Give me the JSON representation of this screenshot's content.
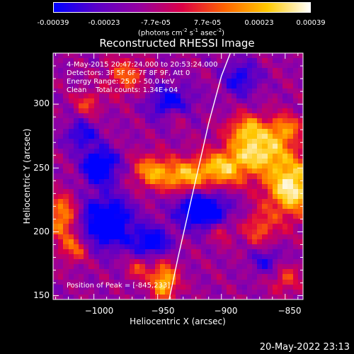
{
  "colorbar": {
    "ticks": [
      "-0.00039",
      "-0.00023",
      "-7.7e-05",
      "7.7e-05",
      "0.00023",
      "0.00039"
    ],
    "units_text": "(photons cm",
    "units_exp1": "-2",
    "units_mid": " s",
    "units_exp2": "-1",
    "units_mid2": " asec",
    "units_exp3": "-2",
    "units_end": ")"
  },
  "title": "Reconstructed RHESSI Image",
  "overlay": {
    "time_range": "4-May-2015 20:47:24.000 to 20:53:24.000",
    "detectors": "Detectors: 3F 5F 6F 7F 8F 9F, Att 0",
    "energy_range": "Energy Range: 25.0 - 50.0 keV",
    "clean_counts": "Clean    Total counts: 1.34E+04",
    "peak": "Position of Peak = [-845,233]"
  },
  "timestamp": "20-May-2022 23:13",
  "chart_data": {
    "type": "heatmap",
    "title": "Reconstructed RHESSI Image",
    "xlabel": "Heliocentric X (arcsec)",
    "ylabel": "Heliocentric Y (arcsec)",
    "xlim": [
      -1032,
      -836
    ],
    "ylim": [
      147,
      340
    ],
    "x_ticks": [
      -1000,
      -950,
      -900,
      -850
    ],
    "x_tick_labels": [
      "−1000",
      "−950",
      "−900",
      "−850"
    ],
    "y_ticks": [
      150,
      200,
      250,
      300
    ],
    "y_tick_labels": [
      "150",
      "200",
      "250",
      "300"
    ],
    "value_range": [
      -0.00039,
      0.00039
    ],
    "colormap": [
      "#0000ff",
      "#5a00c8",
      "#9600a0",
      "#dc0046",
      "#ff6400",
      "#ffc800",
      "#ffffff"
    ],
    "limb_line": {
      "x": [
        -941,
        -934,
        -926,
        -918,
        -910,
        -900,
        -893
      ],
      "y": [
        147,
        180,
        215,
        250,
        285,
        322,
        340
      ]
    },
    "bright_regions": [
      {
        "x": -845,
        "y": 233,
        "amp": 1.0,
        "sx": 14,
        "sy": 16
      },
      {
        "x": -870,
        "y": 262,
        "amp": 0.85,
        "sx": 16,
        "sy": 12
      },
      {
        "x": -900,
        "y": 248,
        "amp": 0.75,
        "sx": 14,
        "sy": 10
      },
      {
        "x": -930,
        "y": 242,
        "amp": 0.7,
        "sx": 12,
        "sy": 9
      },
      {
        "x": -955,
        "y": 246,
        "amp": 0.65,
        "sx": 10,
        "sy": 9
      },
      {
        "x": -880,
        "y": 280,
        "amp": 0.6,
        "sx": 10,
        "sy": 8
      },
      {
        "x": -850,
        "y": 280,
        "amp": 0.55,
        "sx": 9,
        "sy": 8
      },
      {
        "x": -1025,
        "y": 210,
        "amp": 0.7,
        "sx": 8,
        "sy": 12
      },
      {
        "x": -1015,
        "y": 185,
        "amp": 0.5,
        "sx": 8,
        "sy": 8
      },
      {
        "x": -945,
        "y": 158,
        "amp": 0.85,
        "sx": 7,
        "sy": 10
      },
      {
        "x": -965,
        "y": 168,
        "amp": 0.4,
        "sx": 6,
        "sy": 6
      },
      {
        "x": -870,
        "y": 200,
        "amp": 0.45,
        "sx": 9,
        "sy": 10
      },
      {
        "x": -850,
        "y": 160,
        "amp": 0.4,
        "sx": 8,
        "sy": 8
      },
      {
        "x": -975,
        "y": 322,
        "amp": 0.5,
        "sx": 10,
        "sy": 10
      },
      {
        "x": -1005,
        "y": 300,
        "amp": 0.4,
        "sx": 7,
        "sy": 7
      },
      {
        "x": -935,
        "y": 290,
        "amp": 0.35,
        "sx": 6,
        "sy": 6
      },
      {
        "x": -900,
        "y": 198,
        "amp": 0.35,
        "sx": 6,
        "sy": 6
      }
    ],
    "dark_regions": [
      {
        "x": -995,
        "y": 250,
        "amp": 0.8,
        "sx": 10,
        "sy": 10
      },
      {
        "x": -990,
        "y": 205,
        "amp": 0.9,
        "sx": 14,
        "sy": 14
      },
      {
        "x": -915,
        "y": 215,
        "amp": 0.9,
        "sx": 14,
        "sy": 10
      },
      {
        "x": -955,
        "y": 190,
        "amp": 0.7,
        "sx": 10,
        "sy": 8
      },
      {
        "x": -940,
        "y": 300,
        "amp": 0.6,
        "sx": 12,
        "sy": 10
      },
      {
        "x": -885,
        "y": 320,
        "amp": 0.5,
        "sx": 10,
        "sy": 10
      },
      {
        "x": -1010,
        "y": 275,
        "amp": 0.5,
        "sx": 9,
        "sy": 8
      },
      {
        "x": -865,
        "y": 175,
        "amp": 0.4,
        "sx": 9,
        "sy": 8
      }
    ]
  }
}
